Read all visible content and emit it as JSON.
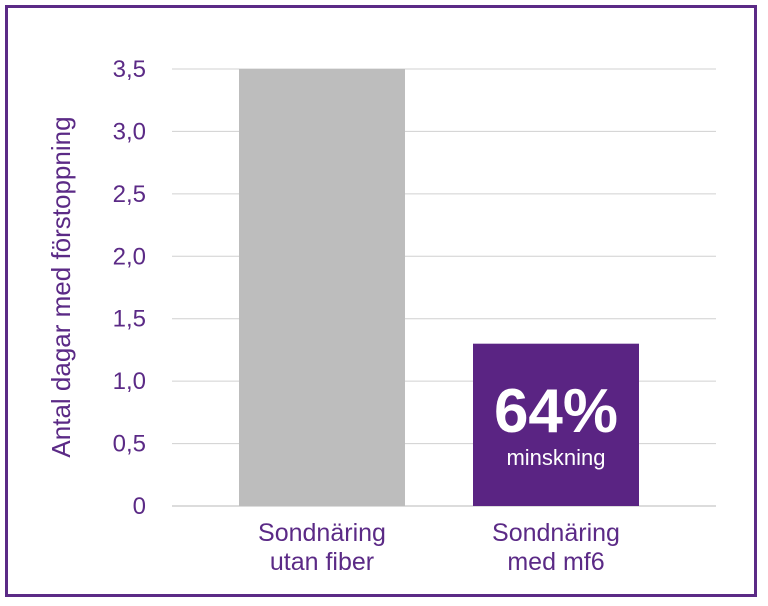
{
  "colors": {
    "frame": "#5b2a86",
    "text": "#5b2a86",
    "grid": "#d0d0d0",
    "bar_1": "#bdbdbd",
    "bar_2": "#5a2483",
    "annotation_text": "#ffffff"
  },
  "chart_data": {
    "type": "bar",
    "categories": [
      [
        "Sondnäring",
        "utan fiber"
      ],
      [
        "Sondnäring",
        "med mf6"
      ]
    ],
    "values": [
      3.5,
      1.3
    ],
    "ylabel": "Antal dagar med förstoppning",
    "xlabel": "",
    "ylim": [
      0,
      3.5
    ],
    "yticks": [
      "0",
      "0,5",
      "1,0",
      "1,5",
      "2,0",
      "2,5",
      "3,0",
      "3,5"
    ],
    "grid": true,
    "legend": "none",
    "annotation": {
      "bar_index": 1,
      "big_text": "64%",
      "small_text": "minskning"
    }
  }
}
